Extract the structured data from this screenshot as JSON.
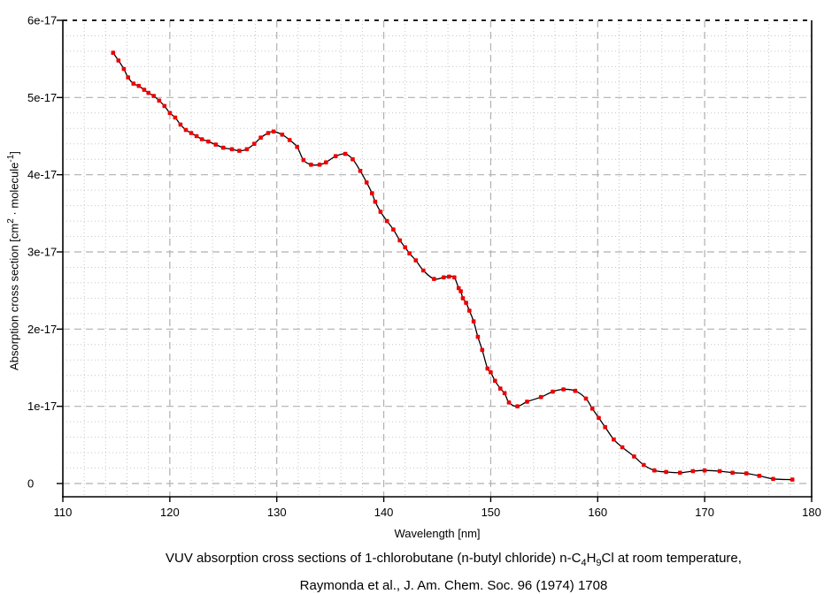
{
  "axis": {
    "x_title": "Wavelength [nm]",
    "y_title_parts": {
      "pre": "Absorption cross section [cm",
      "sup1": "2",
      "mid": " · molecule",
      "sup2": "-1",
      "post": "]"
    }
  },
  "caption": {
    "line1": {
      "p1": "VUV absorption cross sections of 1-chlorobutane (n-butyl chloride) n-C",
      "sub1": "4",
      "p2": "H",
      "sub2": "9",
      "p3": "Cl at room temperature,"
    },
    "line2": "Raymonda et al., J. Am. Chem. Soc. 96 (1974) 1708"
  },
  "chart_data": {
    "type": "line",
    "xlabel": "Wavelength [nm]",
    "ylabel": "Absorption cross section [cm2 · molecule-1]",
    "xlim": [
      110,
      180
    ],
    "ylim": [
      0,
      6e-17
    ],
    "grid": "major dashed + minor dotted",
    "x_minor_step": 2,
    "y_minor_step": 0.2,
    "x_ticks": [
      {
        "v": 110,
        "label": "110"
      },
      {
        "v": 120,
        "label": "120"
      },
      {
        "v": 130,
        "label": "130"
      },
      {
        "v": 140,
        "label": "140"
      },
      {
        "v": 150,
        "label": "150"
      },
      {
        "v": 160,
        "label": "160"
      },
      {
        "v": 170,
        "label": "170"
      },
      {
        "v": 180,
        "label": "180"
      }
    ],
    "y_ticks": [
      {
        "v": 0,
        "label": "0"
      },
      {
        "v": 1,
        "label": "1e-17"
      },
      {
        "v": 2,
        "label": "2e-17"
      },
      {
        "v": 3,
        "label": "3e-17"
      },
      {
        "v": 4,
        "label": "4e-17"
      },
      {
        "v": 5,
        "label": "5e-17"
      },
      {
        "v": 6,
        "label": "6e-17"
      }
    ],
    "y_unit_note": "point values below are in units of 1e-17 cm2/molecule",
    "colors": {
      "line": "#000000",
      "marker": "#ee0000",
      "grid_major": "#b0b0b0",
      "grid_minor": "#c6c6c6",
      "axis": "#000000",
      "background": "#ffffff"
    },
    "series": [
      {
        "name": "cross-section",
        "points": [
          [
            114.7,
            5.58
          ],
          [
            115.2,
            5.48
          ],
          [
            115.7,
            5.37
          ],
          [
            116.1,
            5.26
          ],
          [
            116.6,
            5.18
          ],
          [
            117.1,
            5.15
          ],
          [
            117.6,
            5.1
          ],
          [
            118.0,
            5.06
          ],
          [
            118.5,
            5.02
          ],
          [
            119.0,
            4.96
          ],
          [
            119.5,
            4.89
          ],
          [
            120.0,
            4.8
          ],
          [
            120.5,
            4.74
          ],
          [
            121.0,
            4.65
          ],
          [
            121.5,
            4.58
          ],
          [
            122.0,
            4.54
          ],
          [
            122.5,
            4.5
          ],
          [
            123.0,
            4.46
          ],
          [
            123.6,
            4.43
          ],
          [
            124.3,
            4.39
          ],
          [
            125.0,
            4.35
          ],
          [
            125.8,
            4.33
          ],
          [
            126.5,
            4.31
          ],
          [
            127.2,
            4.33
          ],
          [
            127.9,
            4.4
          ],
          [
            128.5,
            4.48
          ],
          [
            129.2,
            4.54
          ],
          [
            129.7,
            4.56
          ],
          [
            130.5,
            4.52
          ],
          [
            131.2,
            4.45
          ],
          [
            131.9,
            4.36
          ],
          [
            132.5,
            4.19
          ],
          [
            133.2,
            4.13
          ],
          [
            134.0,
            4.13
          ],
          [
            134.6,
            4.16
          ],
          [
            135.5,
            4.24
          ],
          [
            136.4,
            4.27
          ],
          [
            137.1,
            4.2
          ],
          [
            137.8,
            4.05
          ],
          [
            138.4,
            3.9
          ],
          [
            138.9,
            3.76
          ],
          [
            139.2,
            3.65
          ],
          [
            139.7,
            3.52
          ],
          [
            140.3,
            3.4
          ],
          [
            140.9,
            3.29
          ],
          [
            141.5,
            3.15
          ],
          [
            142.0,
            3.06
          ],
          [
            142.4,
            2.98
          ],
          [
            143.0,
            2.89
          ],
          [
            143.7,
            2.76
          ],
          [
            144.7,
            2.65
          ],
          [
            145.6,
            2.67
          ],
          [
            146.1,
            2.68
          ],
          [
            146.6,
            2.67
          ],
          [
            147.0,
            2.53
          ],
          [
            147.2,
            2.49
          ],
          [
            147.4,
            2.4
          ],
          [
            147.7,
            2.34
          ],
          [
            148.0,
            2.24
          ],
          [
            148.4,
            2.1
          ],
          [
            148.8,
            1.9
          ],
          [
            149.2,
            1.73
          ],
          [
            149.7,
            1.49
          ],
          [
            150.0,
            1.44
          ],
          [
            150.4,
            1.33
          ],
          [
            150.9,
            1.23
          ],
          [
            151.3,
            1.17
          ],
          [
            151.7,
            1.05
          ],
          [
            152.5,
            1.0
          ],
          [
            153.4,
            1.06
          ],
          [
            154.7,
            1.12
          ],
          [
            155.8,
            1.19
          ],
          [
            156.8,
            1.22
          ],
          [
            157.9,
            1.2
          ],
          [
            158.9,
            1.1
          ],
          [
            159.5,
            0.97
          ],
          [
            160.1,
            0.85
          ],
          [
            160.7,
            0.73
          ],
          [
            161.5,
            0.57
          ],
          [
            162.3,
            0.47
          ],
          [
            163.4,
            0.35
          ],
          [
            164.3,
            0.24
          ],
          [
            165.3,
            0.17
          ],
          [
            166.4,
            0.15
          ],
          [
            167.7,
            0.14
          ],
          [
            168.9,
            0.16
          ],
          [
            170.0,
            0.17
          ],
          [
            171.4,
            0.16
          ],
          [
            172.6,
            0.14
          ],
          [
            173.9,
            0.13
          ],
          [
            175.1,
            0.1
          ],
          [
            176.4,
            0.06
          ],
          [
            178.2,
            0.05
          ]
        ]
      }
    ]
  }
}
